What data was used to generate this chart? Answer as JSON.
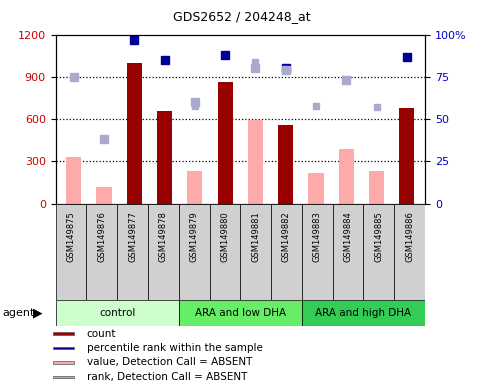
{
  "title": "GDS2652 / 204248_at",
  "samples": [
    "GSM149875",
    "GSM149876",
    "GSM149877",
    "GSM149878",
    "GSM149879",
    "GSM149880",
    "GSM149881",
    "GSM149882",
    "GSM149883",
    "GSM149884",
    "GSM149885",
    "GSM149886"
  ],
  "count_present": [
    null,
    null,
    1000,
    660,
    null,
    860,
    null,
    560,
    null,
    null,
    null,
    680
  ],
  "count_absent": [
    330,
    120,
    null,
    null,
    230,
    null,
    590,
    null,
    220,
    390,
    230,
    null
  ],
  "pct_present": [
    null,
    null,
    97,
    85,
    null,
    88,
    null,
    80,
    null,
    null,
    null,
    87
  ],
  "pct_absent": [
    75,
    38,
    null,
    null,
    60,
    null,
    80,
    79,
    null,
    73,
    null,
    null
  ],
  "rank_absent": [
    null,
    38,
    null,
    null,
    58,
    null,
    84,
    null,
    58,
    null,
    57,
    null
  ],
  "ylim_left": [
    0,
    1200
  ],
  "ylim_right": [
    0,
    100
  ],
  "yticks_left": [
    0,
    300,
    600,
    900,
    1200
  ],
  "yticks_right": [
    0,
    25,
    50,
    75,
    100
  ],
  "color_count_present": "#990000",
  "color_count_absent": "#ffaaaa",
  "color_pct_present": "#000099",
  "color_pct_absent": "#aaaacc",
  "color_rank_absent": "#aaaacc",
  "group_colors": [
    "#ccffcc",
    "#66ee66",
    "#33cc55"
  ],
  "group_labels": [
    "control",
    "ARA and low DHA",
    "ARA and high DHA"
  ],
  "group_ranges": [
    [
      0,
      4
    ],
    [
      4,
      8
    ],
    [
      8,
      12
    ]
  ],
  "legend_items": [
    {
      "color": "#990000",
      "label": "count"
    },
    {
      "color": "#000099",
      "label": "percentile rank within the sample"
    },
    {
      "color": "#ffaaaa",
      "label": "value, Detection Call = ABSENT"
    },
    {
      "color": "#aaaacc",
      "label": "rank, Detection Call = ABSENT"
    }
  ]
}
